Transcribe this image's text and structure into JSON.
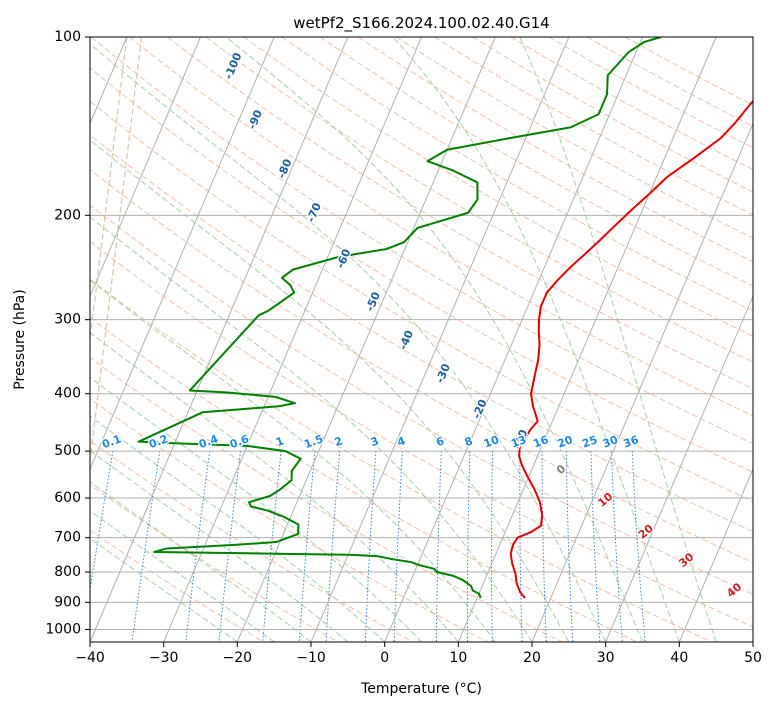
{
  "chart_data": {
    "type": "line",
    "title": "wetPf2_S166.2024.100.02.40.G14",
    "xlabel": "Temperature (°C)",
    "ylabel": "Pressure (hPa)",
    "xlim": [
      -40,
      50
    ],
    "ylim": [
      1050,
      100
    ],
    "yscale": "log",
    "grid": true,
    "x_ticks": [
      -40,
      -30,
      -20,
      -10,
      0,
      10,
      20,
      30,
      40,
      50
    ],
    "x_tick_labels": [
      "−40",
      "−30",
      "−20",
      "−10",
      "0",
      "10",
      "20",
      "30",
      "40",
      "50"
    ],
    "y_ticks": [
      100,
      200,
      300,
      400,
      500,
      600,
      700,
      800,
      900,
      1000
    ],
    "y_tick_labels": [
      "100",
      "200",
      "300",
      "400",
      "500",
      "600",
      "700",
      "800",
      "900",
      "1000"
    ],
    "skew_isotherm_labels": [
      {
        "text": "-100",
        "x": -20.5,
        "p": 112
      },
      {
        "text": "-90",
        "x": -17.5,
        "p": 138
      },
      {
        "text": "-80",
        "x": -13.5,
        "p": 167
      },
      {
        "text": "-70",
        "x": -9.5,
        "p": 198
      },
      {
        "text": "-60",
        "x": -5.5,
        "p": 237
      },
      {
        "text": "-50",
        "x": -1.5,
        "p": 280
      },
      {
        "text": "-40",
        "x": 3.0,
        "p": 325
      },
      {
        "text": "-30",
        "x": 8.0,
        "p": 370
      },
      {
        "text": "-20",
        "x": 13.0,
        "p": 425
      },
      {
        "text": "-10",
        "x": 18.5,
        "p": 478
      }
    ],
    "mixing_ratio_labels": [
      "0.1",
      "0.2",
      "0.4",
      "0.6",
      "1",
      "1.5",
      "2",
      "3",
      "4",
      "6",
      "8",
      "10",
      "13",
      "16",
      "20",
      "25",
      "30",
      "36"
    ],
    "moist_adiabat_labels": [
      {
        "text": "0",
        "x": 24.0,
        "p": 538
      },
      {
        "text": "10",
        "x": 30.0,
        "p": 605
      },
      {
        "text": "20",
        "x": 35.5,
        "p": 685
      },
      {
        "text": "30",
        "x": 41.0,
        "p": 765
      },
      {
        "text": "40",
        "x": 47.5,
        "p": 860
      }
    ],
    "series": [
      {
        "color": "#e00000",
        "points": [
          [
            16.5,
            885
          ],
          [
            15.5,
            865
          ],
          [
            14.5,
            835
          ],
          [
            13.8,
            805
          ],
          [
            12.8,
            775
          ],
          [
            12.0,
            745
          ],
          [
            11.8,
            720
          ],
          [
            12.0,
            700
          ],
          [
            13.5,
            685
          ],
          [
            14.5,
            668
          ],
          [
            14.0,
            640
          ],
          [
            13.0,
            610
          ],
          [
            11.5,
            580
          ],
          [
            10.0,
            555
          ],
          [
            8.5,
            530
          ],
          [
            7.5,
            510
          ],
          [
            7.0,
            490
          ],
          [
            7.5,
            460
          ],
          [
            8.0,
            445
          ],
          [
            6.5,
            420
          ],
          [
            5.5,
            400
          ],
          [
            5.0,
            375
          ],
          [
            4.5,
            350
          ],
          [
            3.8,
            330
          ],
          [
            3.0,
            315
          ],
          [
            2.3,
            300
          ],
          [
            1.8,
            285
          ],
          [
            1.8,
            270
          ],
          [
            2.5,
            258
          ],
          [
            3.5,
            245
          ],
          [
            4.8,
            232
          ],
          [
            6.0,
            220
          ],
          [
            7.2,
            208
          ],
          [
            8.5,
            196
          ],
          [
            10.0,
            184
          ],
          [
            11.5,
            172
          ],
          [
            14.0,
            160
          ],
          [
            16.5,
            148
          ],
          [
            17.5,
            140
          ],
          [
            18.5,
            130
          ],
          [
            19.5,
            122
          ],
          [
            21.0,
            115
          ],
          [
            22.0,
            108
          ],
          [
            22.5,
            100
          ]
        ]
      },
      {
        "color": "#008000",
        "points": [
          [
            10.5,
            885
          ],
          [
            10.0,
            870
          ],
          [
            9.0,
            860
          ],
          [
            8.5,
            845
          ],
          [
            7.0,
            825
          ],
          [
            5.5,
            812
          ],
          [
            3.0,
            800
          ],
          [
            2.5,
            790
          ],
          [
            0.5,
            780
          ],
          [
            -1.0,
            770
          ],
          [
            -4.0,
            760
          ],
          [
            -6.0,
            752
          ],
          [
            -10.0,
            748
          ],
          [
            -20.0,
            745
          ],
          [
            -30.0,
            742
          ],
          [
            -36.5,
            740
          ],
          [
            -35.0,
            730
          ],
          [
            -26.0,
            720
          ],
          [
            -20.5,
            712
          ],
          [
            -18.0,
            690
          ],
          [
            -18.5,
            665
          ],
          [
            -21.0,
            645
          ],
          [
            -23.5,
            630
          ],
          [
            -26.0,
            620
          ],
          [
            -26.5,
            610
          ],
          [
            -24.0,
            595
          ],
          [
            -23.0,
            580
          ],
          [
            -22.0,
            560
          ],
          [
            -22.5,
            540
          ],
          [
            -22.0,
            515
          ],
          [
            -24.5,
            500
          ],
          [
            -30.0,
            490
          ],
          [
            -40.0,
            485
          ],
          [
            -45.0,
            482
          ],
          [
            -38.0,
            430
          ],
          [
            -28.0,
            420
          ],
          [
            -26.0,
            415
          ],
          [
            -29.0,
            405
          ],
          [
            -36.0,
            398
          ],
          [
            -41.0,
            395
          ],
          [
            -36.0,
            295
          ],
          [
            -35.0,
            290
          ],
          [
            -34.0,
            282
          ],
          [
            -32.5,
            270
          ],
          [
            -33.5,
            262
          ],
          [
            -35.0,
            255
          ],
          [
            -34.0,
            247
          ],
          [
            -28.5,
            235
          ],
          [
            -22.5,
            228
          ],
          [
            -20.5,
            222
          ],
          [
            -19.5,
            210
          ],
          [
            -13.5,
            198
          ],
          [
            -13.0,
            188
          ],
          [
            -14.0,
            176
          ],
          [
            -18.0,
            168
          ],
          [
            -22.0,
            162
          ],
          [
            -20.0,
            155
          ],
          [
            -12.0,
            148
          ],
          [
            -4.5,
            142
          ],
          [
            -1.5,
            135
          ],
          [
            -1.5,
            125
          ],
          [
            -2.5,
            116
          ],
          [
            -1.0,
            106
          ],
          [
            0.5,
            102
          ],
          [
            2.5,
            100
          ]
        ]
      }
    ]
  }
}
